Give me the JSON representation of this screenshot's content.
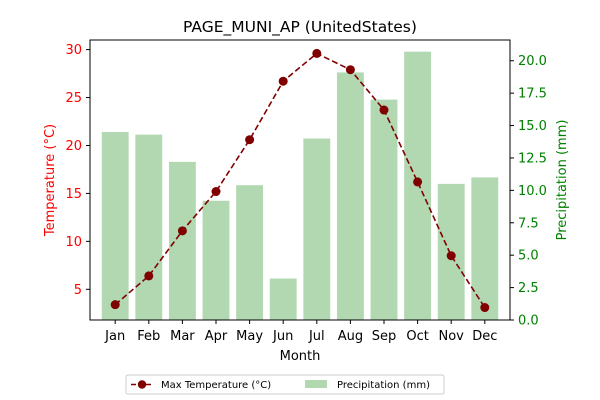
{
  "chart_data": {
    "type": "bar+line",
    "title": "PAGE_MUNI_AP (UnitedStates)",
    "xlabel": "Month",
    "categories": [
      "Jan",
      "Feb",
      "Mar",
      "Apr",
      "May",
      "Jun",
      "Jul",
      "Aug",
      "Sep",
      "Oct",
      "Nov",
      "Dec"
    ],
    "left_axis": {
      "label": "Temperature (°C)",
      "color": "#ff0000",
      "ticks": [
        5,
        10,
        15,
        20,
        25,
        30
      ],
      "range": [
        1.8,
        31.0
      ]
    },
    "right_axis": {
      "label": "Precipitation (mm)",
      "color": "#008000",
      "ticks": [
        0.0,
        2.5,
        5.0,
        7.5,
        10.0,
        12.5,
        15.0,
        17.5,
        20.0
      ],
      "tick_labels": [
        "0.0",
        "2.5",
        "5.0",
        "7.5",
        "10.0",
        "12.5",
        "15.0",
        "17.5",
        "20.0"
      ],
      "range": [
        0,
        21.6
      ]
    },
    "series": [
      {
        "name": "Max Temperature (°C)",
        "kind": "line",
        "axis": "left",
        "color": "#800000",
        "values": [
          3.4,
          6.4,
          11.1,
          15.2,
          20.6,
          26.7,
          29.6,
          27.9,
          23.7,
          16.2,
          8.5,
          3.1
        ]
      },
      {
        "name": "Precipitation (mm)",
        "kind": "bar",
        "axis": "right",
        "color": "#b2d8b2",
        "values": [
          14.5,
          14.3,
          12.2,
          9.2,
          10.4,
          3.2,
          14.0,
          19.1,
          17.0,
          20.7,
          10.5,
          11.0
        ]
      }
    ],
    "legend": {
      "placement": "bottom-center",
      "ncol": 2
    },
    "grid": false
  }
}
